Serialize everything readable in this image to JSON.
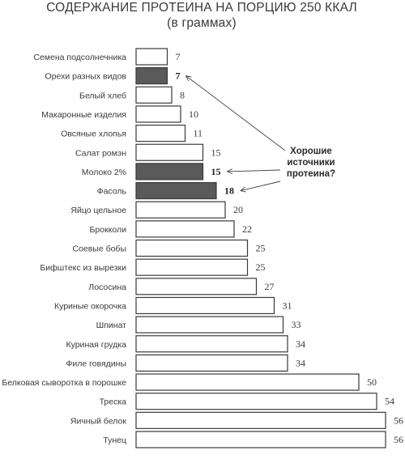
{
  "chart_data": {
    "type": "bar",
    "orientation": "horizontal",
    "title": "СОДЕРЖАНИЕ ПРОТЕИНА НА ПОРЦИЮ 250 ККАЛ",
    "subtitle": "(в граммах)",
    "categories": [
      "Семена подсолнечника",
      "Орехи разных видов",
      "Белый хлеб",
      "Макаронные изделия",
      "Овсяные хлопья",
      "Салат ромэн",
      "Молоко 2%",
      "Фасоль",
      "Яйцо цельное",
      "Брокколи",
      "Соевые бобы",
      "Бифштекс из вырезки",
      "Лососина",
      "Куриные окорочка",
      "Шпинат",
      "Куриная грудка",
      "Филе говядины",
      "Белковая сыворотка в порошке",
      "Треска",
      "Яичный белок",
      "Тунец"
    ],
    "values": [
      7,
      7,
      8,
      10,
      11,
      15,
      15,
      18,
      20,
      22,
      25,
      25,
      27,
      31,
      33,
      34,
      34,
      50,
      54,
      56,
      56
    ],
    "highlighted": [
      "Орехи разных видов",
      "Молоко 2%",
      "Фасоль"
    ],
    "annotation": "Хорошие источники протеина?",
    "annotation_lines": [
      "Хорошие",
      "источники",
      "протеина?"
    ],
    "colors": {
      "bar": "#ffffff",
      "bar_stroke": "#3a3a3a",
      "highlight": "#5a5a5a",
      "text": "#3a3a3a"
    },
    "xlim": [
      0,
      56
    ],
    "grid": false,
    "legend": "none"
  }
}
